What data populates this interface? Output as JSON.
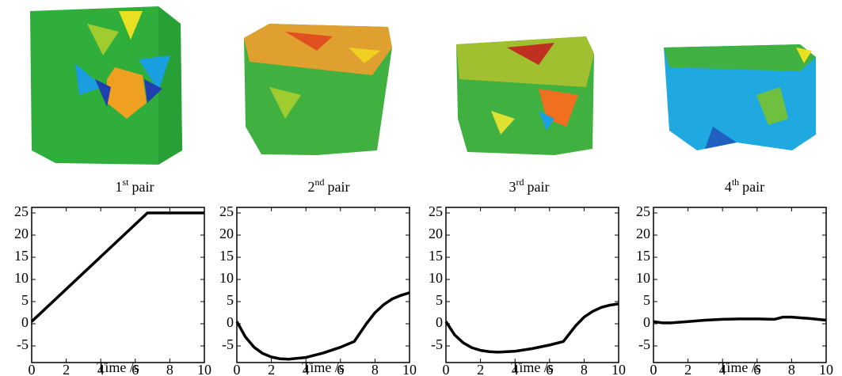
{
  "captions": [
    {
      "ordinal": "1",
      "suffix": "st",
      "word": "pair"
    },
    {
      "ordinal": "2",
      "suffix": "nd",
      "word": "pair"
    },
    {
      "ordinal": "3",
      "suffix": "rd",
      "word": "pair"
    },
    {
      "ordinal": "4",
      "suffix": "th",
      "word": "pair"
    }
  ],
  "chart_data": [
    {
      "type": "line",
      "xlabel": "Time /s",
      "x": [
        0,
        6.7,
        10
      ],
      "series": [
        {
          "color": "#000000",
          "values": [
            0.5,
            25,
            25
          ]
        }
      ],
      "xlim": [
        0,
        10
      ],
      "ylim": [
        -8.75,
        26.25
      ],
      "xticks": [
        0,
        2,
        4,
        6,
        8,
        10
      ],
      "yticks": [
        -5,
        0,
        5,
        10,
        15,
        20,
        25
      ]
    },
    {
      "type": "line",
      "xlabel": "Time /s",
      "x": [
        0,
        0.5,
        1,
        1.5,
        2,
        2.5,
        3,
        4,
        5,
        6,
        6.8,
        7.5,
        8,
        8.5,
        9,
        9.5,
        10
      ],
      "series": [
        {
          "color": "#000000",
          "values": [
            0.5,
            -3,
            -5.3,
            -6.7,
            -7.5,
            -7.9,
            -8,
            -7.6,
            -6.6,
            -5.3,
            -4,
            0,
            2.5,
            4.3,
            5.6,
            6.4,
            7
          ]
        }
      ],
      "xlim": [
        0,
        10
      ],
      "ylim": [
        -8.75,
        26.25
      ],
      "xticks": [
        0,
        2,
        4,
        6,
        8,
        10
      ],
      "yticks": [
        -5,
        0,
        5,
        10,
        15,
        20,
        25
      ]
    },
    {
      "type": "line",
      "xlabel": "Time /s",
      "x": [
        0,
        0.5,
        1,
        1.5,
        2,
        2.5,
        3,
        4,
        5,
        6,
        6.8,
        7.5,
        8,
        8.5,
        9,
        9.5,
        10
      ],
      "series": [
        {
          "color": "#000000",
          "values": [
            0.5,
            -2.5,
            -4.3,
            -5.4,
            -6,
            -6.3,
            -6.4,
            -6.2,
            -5.6,
            -4.8,
            -4,
            -0.5,
            1.5,
            2.8,
            3.7,
            4.2,
            4.5
          ]
        }
      ],
      "xlim": [
        0,
        10
      ],
      "ylim": [
        -8.75,
        26.25
      ],
      "xticks": [
        0,
        2,
        4,
        6,
        8,
        10
      ],
      "yticks": [
        -5,
        0,
        5,
        10,
        15,
        20,
        25
      ]
    },
    {
      "type": "line",
      "xlabel": "Time /s",
      "x": [
        0,
        0.5,
        1,
        2,
        3,
        4,
        5,
        6,
        7,
        7.5,
        8,
        9,
        10
      ],
      "series": [
        {
          "color": "#000000",
          "values": [
            0.5,
            0.2,
            0.2,
            0.5,
            0.8,
            1,
            1.1,
            1.1,
            1,
            1.5,
            1.5,
            1.2,
            0.8
          ]
        }
      ],
      "xlim": [
        0,
        10
      ],
      "ylim": [
        -8.75,
        26.25
      ],
      "xticks": [
        0,
        2,
        4,
        6,
        8,
        10
      ],
      "yticks": [
        -5,
        0,
        5,
        10,
        15,
        20,
        25
      ]
    }
  ]
}
